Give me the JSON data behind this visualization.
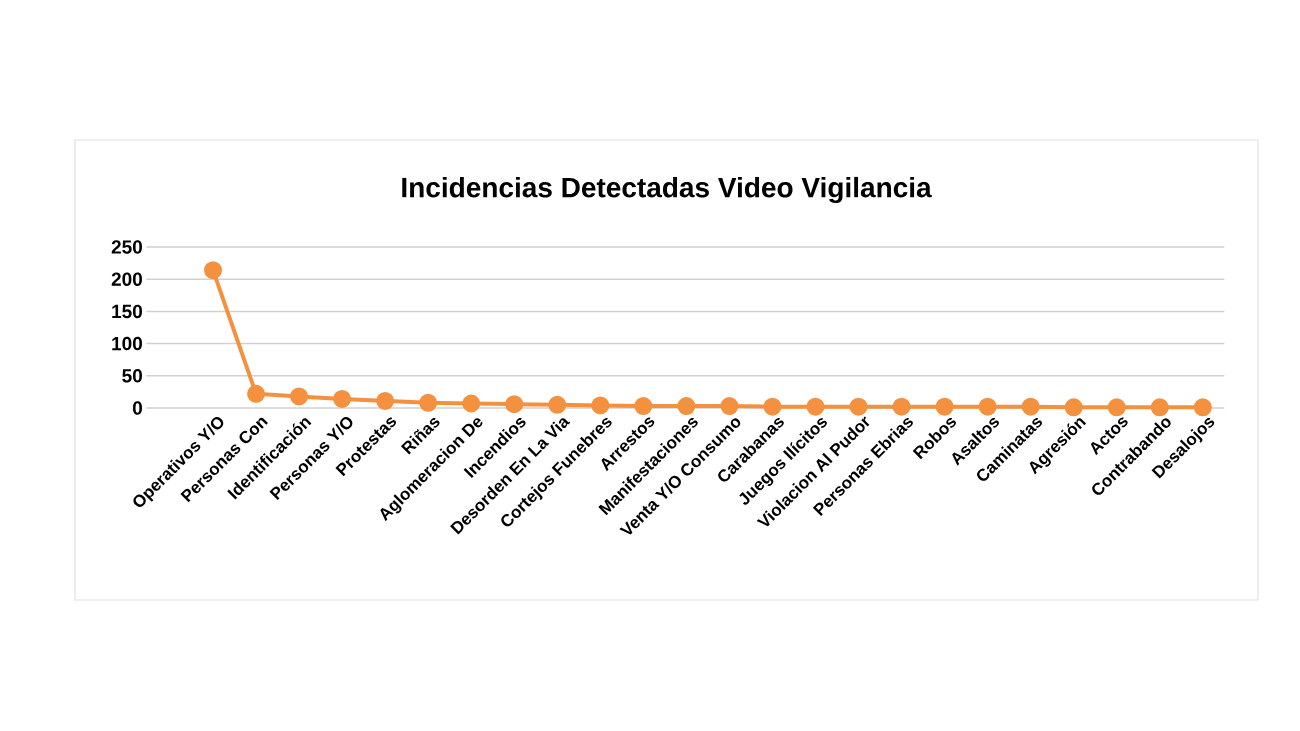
{
  "chart_data": {
    "type": "line",
    "title": "Incidencias Detectadas Video Vigilancia",
    "categories": [
      "Operativos Y/O",
      "Personas Con",
      "Identificación",
      "Personas Y/O",
      "Protestas",
      "Riñas",
      "Aglomeracion De",
      "Incendios",
      "Desorden En La Via",
      "Cortejos Funebres",
      "Arrestos",
      "Manifestaciones",
      "Venta Y/O Consumo",
      "Carabanas",
      "Juegos Ilícitos",
      "Violacion Al Pudor",
      "Personas Ebrias",
      "Robos",
      "Asaltos",
      "Caminatas",
      "Agresión",
      "Actos",
      "Contrabando",
      "Desalojos"
    ],
    "series": [
      {
        "color": "#f4913f",
        "values": [
          214,
          22,
          18,
          14,
          11,
          8,
          7,
          6,
          5,
          4,
          3,
          3,
          3,
          2,
          2,
          2,
          2,
          2,
          2,
          2,
          1,
          1,
          1,
          1
        ]
      }
    ],
    "ylim": [
      0,
      250
    ],
    "yticks": [
      0,
      50,
      100,
      150,
      200,
      250
    ],
    "grid": "y",
    "marker": "circle",
    "line_style": "solid",
    "legend": false
  }
}
